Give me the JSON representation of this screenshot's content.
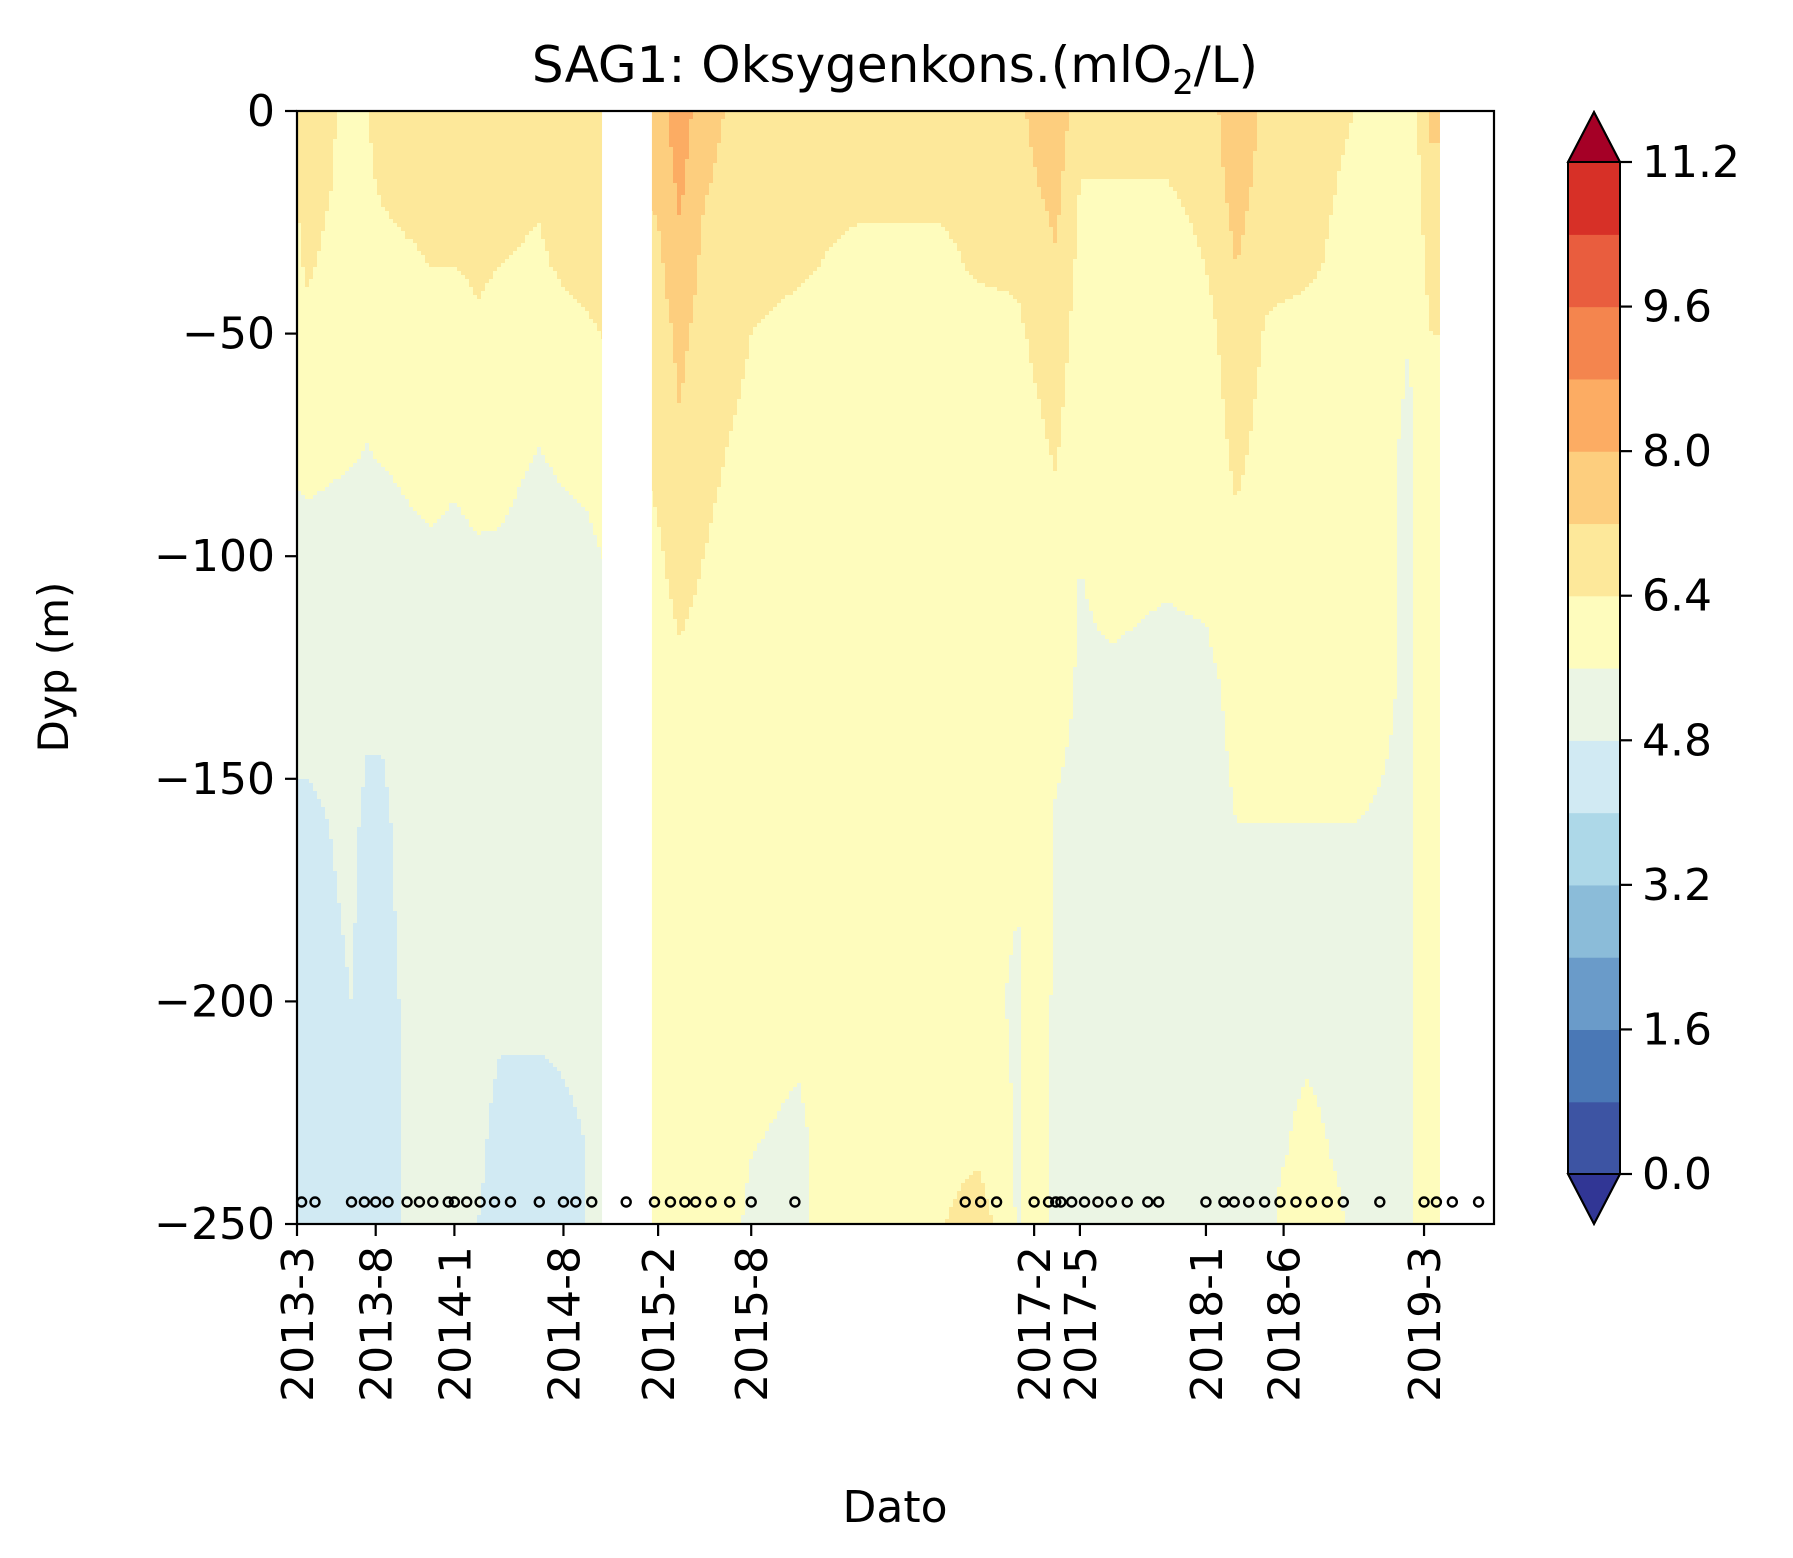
{
  "chart_data": {
    "type": "heatmap",
    "title_main": "SAG1: Oksygenkons.(mlO",
    "title_sub": "2",
    "title_end": "/L)",
    "xlabel": "Dato",
    "ylabel": "Dyp (m)",
    "y_ticks": [
      {
        "value": 0,
        "label": "0"
      },
      {
        "value": -50,
        "label": "−50"
      },
      {
        "value": -100,
        "label": "−100"
      },
      {
        "value": -150,
        "label": "−150"
      },
      {
        "value": -200,
        "label": "−200"
      },
      {
        "value": -250,
        "label": "−250"
      }
    ],
    "ylim": [
      -250,
      0
    ],
    "x_range": [
      "2013-03-01",
      "2019-07-15"
    ],
    "x_ticks": [
      {
        "date": "2013-03-01",
        "label": "2013-3"
      },
      {
        "date": "2013-08-01",
        "label": "2013-8"
      },
      {
        "date": "2014-01-01",
        "label": "2014-1"
      },
      {
        "date": "2014-08-01",
        "label": "2014-8"
      },
      {
        "date": "2015-02-01",
        "label": "2015-2"
      },
      {
        "date": "2015-08-01",
        "label": "2015-8"
      },
      {
        "date": "2017-02-01",
        "label": "2017-2"
      },
      {
        "date": "2017-05-01",
        "label": "2017-5"
      },
      {
        "date": "2018-01-01",
        "label": "2018-1"
      },
      {
        "date": "2018-06-01",
        "label": "2018-6"
      },
      {
        "date": "2019-03-01",
        "label": "2019-3"
      }
    ],
    "levels": [
      0.0,
      0.8,
      1.6,
      2.4,
      3.2,
      4.0,
      4.8,
      5.6,
      6.4,
      7.2,
      8.0,
      8.8,
      9.6,
      10.4,
      11.2
    ],
    "level_labels": [
      "0.0",
      "1.6",
      "3.2",
      "4.8",
      "6.4",
      "8.0",
      "9.6",
      "11.2"
    ],
    "colors": [
      "#3d54a3",
      "#4a78b6",
      "#6a9bc9",
      "#8bbcd9",
      "#add8e8",
      "#d1eaf3",
      "#ebf5e4",
      "#fefcbd",
      "#fde89a",
      "#fdce7e",
      "#fcac63",
      "#f4854e",
      "#e95d3e",
      "#d73027"
    ],
    "color_under": "#313695",
    "color_over": "#a50026",
    "depths": [
      0,
      -15,
      -35,
      -50,
      -75,
      -100,
      -130,
      -160,
      -200,
      -235,
      -250
    ],
    "profiles": [
      {
        "date": "2013-03-05",
        "values": [
          6.5,
          6.5,
          6.3,
          6.1,
          5.9,
          5.2,
          5.0,
          4.7,
          4.6,
          4.6,
          4.5
        ]
      },
      {
        "date": "2013-03-20",
        "values": [
          6.6,
          6.7,
          6.5,
          6.2,
          5.9,
          5.3,
          5.0,
          4.7,
          4.6,
          4.6,
          4.5
        ]
      },
      {
        "date": "2013-06-15",
        "values": [
          6.3,
          6.2,
          6.0,
          5.9,
          5.7,
          5.2,
          5.0,
          4.9,
          4.8,
          4.8,
          4.8
        ]
      },
      {
        "date": "2013-07-15",
        "values": [
          6.4,
          6.3,
          6.1,
          5.9,
          5.6,
          5.2,
          4.9,
          4.7,
          4.6,
          4.5,
          4.5
        ]
      },
      {
        "date": "2013-08-15",
        "values": [
          6.6,
          6.5,
          6.2,
          6.0,
          5.7,
          5.2,
          4.9,
          4.7,
          4.6,
          4.6,
          4.5
        ]
      },
      {
        "date": "2013-10-01",
        "values": [
          6.5,
          6.6,
          6.3,
          6.0,
          5.8,
          5.4,
          5.1,
          5.0,
          4.9,
          4.9,
          4.9
        ]
      },
      {
        "date": "2013-11-15",
        "values": [
          6.4,
          6.6,
          6.4,
          6.2,
          5.9,
          5.5,
          5.2,
          5.0,
          4.9,
          4.9,
          4.9
        ]
      },
      {
        "date": "2014-01-01",
        "values": [
          6.6,
          6.8,
          6.4,
          6.0,
          5.8,
          5.4,
          5.1,
          5.0,
          4.9,
          4.9,
          4.9
        ]
      },
      {
        "date": "2014-02-15",
        "values": [
          6.7,
          6.8,
          6.5,
          6.3,
          6.0,
          5.5,
          5.3,
          5.1,
          5.0,
          4.9,
          4.8
        ]
      },
      {
        "date": "2014-04-01",
        "values": [
          6.6,
          6.6,
          6.4,
          6.1,
          5.9,
          5.5,
          5.2,
          5.0,
          4.9,
          4.6,
          4.6
        ]
      },
      {
        "date": "2014-06-15",
        "values": [
          6.4,
          6.5,
          6.3,
          5.9,
          5.6,
          5.2,
          5.0,
          5.0,
          4.9,
          4.6,
          4.6
        ]
      },
      {
        "date": "2014-08-01",
        "values": [
          6.8,
          6.8,
          6.5,
          6.2,
          5.8,
          5.3,
          5.0,
          5.0,
          4.9,
          4.7,
          4.7
        ]
      },
      {
        "date": "2014-09-15",
        "values": [
          6.7,
          6.7,
          6.6,
          6.3,
          5.9,
          5.4,
          5.1,
          5.0,
          4.9,
          4.8,
          4.8
        ]
      },
      {
        "date": "2015-02-01",
        "values": [
          7.6,
          7.4,
          7.0,
          6.8,
          6.6,
          6.3,
          6.0,
          6.0,
          6.0,
          6.0,
          6.0
        ]
      },
      {
        "date": "2015-03-15",
        "values": [
          8.5,
          8.2,
          7.8,
          7.4,
          7.1,
          6.7,
          6.2,
          6.0,
          6.0,
          6.0,
          6.0
        ]
      },
      {
        "date": "2015-05-01",
        "values": [
          7.5,
          7.3,
          7.0,
          6.9,
          6.6,
          6.4,
          6.1,
          6.0,
          6.0,
          6.0,
          6.0
        ]
      },
      {
        "date": "2015-08-01",
        "values": [
          6.8,
          6.7,
          6.6,
          6.4,
          6.2,
          6.0,
          6.0,
          6.0,
          5.8,
          5.6,
          5.5
        ]
      },
      {
        "date": "2015-11-01",
        "values": [
          6.7,
          6.6,
          6.5,
          6.2,
          6.0,
          6.0,
          6.0,
          6.0,
          5.7,
          5.5,
          5.5
        ]
      },
      {
        "date": "2016-03-01",
        "values": [
          6.6,
          6.6,
          6.2,
          6.0,
          6.0,
          6.0,
          6.0,
          6.0,
          6.0,
          6.0,
          6.0
        ]
      },
      {
        "date": "2016-08-01",
        "values": [
          6.6,
          6.6,
          6.2,
          6.0,
          6.0,
          6.0,
          6.0,
          6.0,
          6.0,
          6.1,
          6.3
        ]
      },
      {
        "date": "2016-10-15",
        "values": [
          6.7,
          6.7,
          6.5,
          6.1,
          6.0,
          6.0,
          6.0,
          5.9,
          5.8,
          6.3,
          6.9
        ]
      },
      {
        "date": "2017-01-01",
        "values": [
          7.0,
          6.8,
          6.5,
          6.3,
          6.1,
          6.0,
          6.0,
          5.7,
          5.5,
          5.5,
          5.5
        ]
      },
      {
        "date": "2017-02-15",
        "values": [
          7.6,
          7.3,
          6.8,
          6.6,
          6.3,
          6.0,
          6.0,
          6.0,
          6.0,
          6.0,
          6.0
        ]
      },
      {
        "date": "2017-03-15",
        "values": [
          7.9,
          7.5,
          7.1,
          6.9,
          6.5,
          6.1,
          5.9,
          5.5,
          5.4,
          5.3,
          5.3
        ]
      },
      {
        "date": "2017-05-01",
        "values": [
          6.6,
          6.4,
          6.2,
          6.0,
          5.8,
          5.6,
          5.5,
          5.4,
          5.4,
          5.3,
          5.3
        ]
      },
      {
        "date": "2017-07-01",
        "values": [
          6.5,
          6.4,
          6.2,
          6.1,
          5.9,
          5.8,
          5.5,
          5.4,
          5.4,
          5.4,
          5.4
        ]
      },
      {
        "date": "2017-10-15",
        "values": [
          6.5,
          6.4,
          6.1,
          6.0,
          5.9,
          5.7,
          5.4,
          5.4,
          5.4,
          5.4,
          5.4
        ]
      },
      {
        "date": "2018-01-01",
        "values": [
          6.7,
          6.6,
          6.4,
          6.1,
          5.9,
          5.8,
          5.4,
          5.3,
          5.3,
          5.3,
          5.3
        ]
      },
      {
        "date": "2018-03-01",
        "values": [
          7.9,
          7.6,
          7.2,
          6.9,
          6.6,
          6.2,
          5.8,
          5.6,
          5.4,
          5.4,
          5.4
        ]
      },
      {
        "date": "2018-05-01",
        "values": [
          6.9,
          6.8,
          6.6,
          6.3,
          6.1,
          6.0,
          5.9,
          5.6,
          5.5,
          5.5,
          5.5
        ]
      },
      {
        "date": "2018-07-15",
        "values": [
          6.7,
          6.6,
          6.5,
          6.2,
          6.0,
          6.0,
          5.9,
          5.6,
          5.5,
          5.7,
          6.0
        ]
      },
      {
        "date": "2018-10-15",
        "values": [
          6.4,
          6.3,
          6.2,
          6.1,
          6.0,
          6.0,
          5.9,
          5.6,
          5.5,
          5.5,
          5.5
        ]
      },
      {
        "date": "2019-02-01",
        "values": [
          5.9,
          5.8,
          5.7,
          5.6,
          5.5,
          5.5,
          5.5,
          5.5,
          5.5,
          5.5,
          5.5
        ]
      },
      {
        "date": "2019-03-15",
        "values": [
          7.4,
          7.0,
          6.7,
          6.4,
          6.2,
          6.0,
          6.0,
          6.0,
          6.0,
          6.0,
          6.0
        ]
      }
    ],
    "no_data_ranges": [
      [
        "2014-10-15",
        "2015-01-20"
      ],
      [
        "2019-04-01",
        "2019-07-15"
      ]
    ],
    "sample_dates": [
      "2013-03-10",
      "2013-04-05",
      "2013-06-15",
      "2013-07-10",
      "2013-08-01",
      "2013-08-25",
      "2013-10-01",
      "2013-10-25",
      "2013-11-20",
      "2013-12-20",
      "2014-01-01",
      "2014-01-25",
      "2014-02-20",
      "2014-03-20",
      "2014-04-20",
      "2014-06-15",
      "2014-08-01",
      "2014-08-25",
      "2014-09-25",
      "2014-12-01",
      "2015-01-25",
      "2015-02-25",
      "2015-03-25",
      "2015-04-15",
      "2015-05-15",
      "2015-06-20",
      "2015-08-01",
      "2015-10-25",
      "2016-09-20",
      "2016-10-20",
      "2016-11-20",
      "2017-02-01",
      "2017-03-01",
      "2017-03-15",
      "2017-03-25",
      "2017-04-15",
      "2017-05-10",
      "2017-06-05",
      "2017-07-01",
      "2017-08-01",
      "2017-09-10",
      "2017-10-01",
      "2018-01-01",
      "2018-02-05",
      "2018-02-25",
      "2018-03-25",
      "2018-04-25",
      "2018-05-25",
      "2018-06-25",
      "2018-07-25",
      "2018-08-25",
      "2018-09-25",
      "2018-12-05",
      "2019-03-01",
      "2019-03-25",
      "2019-04-25",
      "2019-06-15"
    ]
  }
}
